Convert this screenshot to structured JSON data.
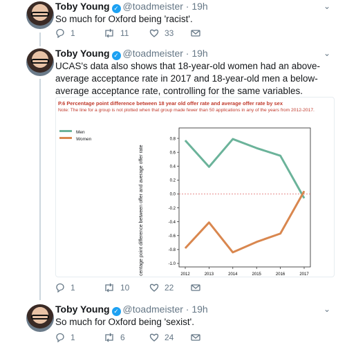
{
  "tweets": [
    {
      "name": "Toby Young",
      "handle": "@toadmeister",
      "time": "· 19h",
      "text": "So much for Oxford being 'racist'.",
      "replies": "1",
      "retweets": "11",
      "likes": "33"
    },
    {
      "name": "Toby Young",
      "handle": "@toadmeister",
      "time": "· 19h",
      "text": "UCAS's data also shows that 18-year-old women had an above-average acceptance rate in 2017 and 18-year-old men a below-average acceptance rate, controlling for the same variables.",
      "replies": "1",
      "retweets": "10",
      "likes": "22"
    },
    {
      "name": "Toby Young",
      "handle": "@toadmeister",
      "time": "· 19h",
      "text": "So much for Oxford being 'sexist'.",
      "replies": "1",
      "retweets": "6",
      "likes": "24"
    }
  ],
  "chart_data": {
    "type": "line",
    "title": "P.6 Percentage point difference between 18 year old offer rate and average offer rate by sex",
    "note": "Note: The line for a group is not plotted when that group made fewer than 50 applications in any of the years from 2012-2017.",
    "ylabel": "centage point difference between offer and average offer rate",
    "xlabel": "",
    "x": [
      2012,
      2013,
      2014,
      2015,
      2016,
      2017
    ],
    "series": [
      {
        "name": "Men",
        "color": "#6bb39a",
        "values": [
          0.77,
          0.39,
          0.79,
          0.66,
          0.55,
          -0.06
        ]
      },
      {
        "name": "Women",
        "color": "#d9874f",
        "values": [
          -0.78,
          -0.41,
          -0.84,
          -0.69,
          -0.57,
          0.04
        ]
      }
    ],
    "ylim": [
      -1.05,
      0.95
    ],
    "yticks": [
      "0.8",
      "0.6",
      "0.4",
      "0.2",
      "0.0",
      "-0.2",
      "-0.4",
      "-0.6",
      "-0.8",
      "-1.0"
    ],
    "ytick_values": [
      0.8,
      0.6,
      0.4,
      0.2,
      0.0,
      -0.2,
      -0.4,
      -0.6,
      -0.8,
      -1.0
    ],
    "zero_line": "dashed red",
    "legend_position": "top-left"
  },
  "colors": {
    "accent": "#1da1f2",
    "muted": "#657786",
    "note": "#c0392b"
  }
}
